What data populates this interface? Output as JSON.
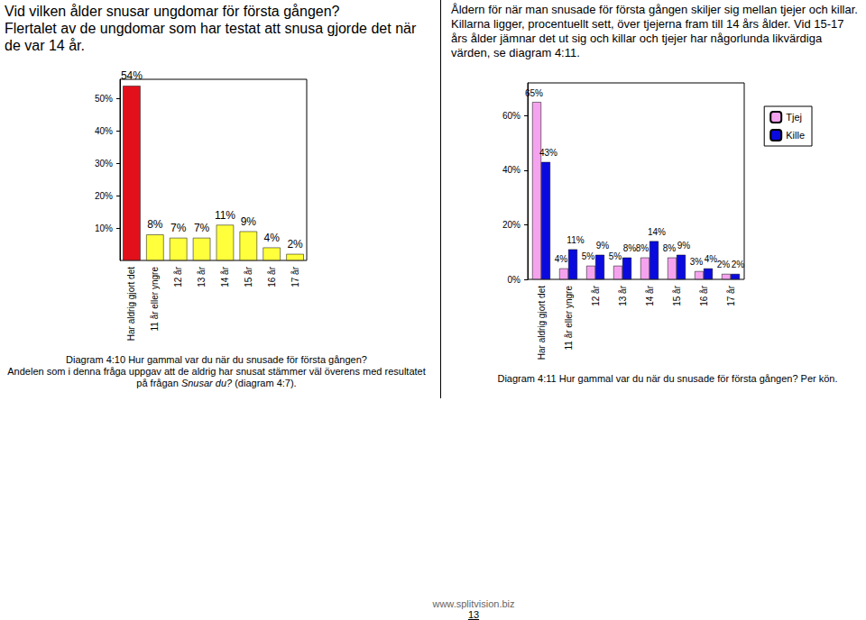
{
  "page": {
    "heading": "Vid vilken ålder snusar ungdomar för första gången?",
    "intro": "Flertalet av de ungdomar som har testat att snusa gjorde det när de var 14 år.",
    "right_text": "Åldern för när man snusade för första gången skiljer sig mellan tjejer och killar. Killarna ligger, procentuellt sett, över tjejerna fram till 14 års ålder. Vid 15-17 års ålder jämnar det ut sig och killar och tjejer har någorlunda likvärdiga värden, se diagram 4:11.",
    "captions": [
      {
        "title": "Diagram 4:10 Hur gammal var du när du snusade för första gången?",
        "note": [
          {
            "text": "Andelen som i denna fråga uppgav att de aldrig har snusat stämmer väl överens med resultatet på frågan ",
            "italic": false
          },
          {
            "text": "Snusar du?",
            "italic": true
          },
          {
            "text": " (diagram 4:7).",
            "italic": false
          }
        ]
      },
      {
        "title": "Diagram 4:11 Hur gammal var du när du snusade för första gången? Per kön."
      }
    ],
    "footer": {
      "url": "www.splitvision.biz",
      "page_number": 13
    }
  },
  "chart_data": [
    {
      "type": "bar",
      "categories": [
        "Har aldrig gjort det",
        "11 år eller yngre",
        "12 år",
        "13 år",
        "14 år",
        "15 år",
        "16 år",
        "17 år"
      ],
      "values": [
        54,
        8,
        7,
        7,
        11,
        9,
        4,
        2
      ],
      "value_labels": [
        "54%",
        "8%",
        "7%",
        "7%",
        "11%",
        "9%",
        "4%",
        "2%"
      ],
      "colors": [
        "#e2101b",
        "#ffff3c",
        "#ffff3c",
        "#ffff3c",
        "#ffff3c",
        "#ffff3c",
        "#ffff3c",
        "#ffff3c"
      ],
      "data_labels": true,
      "ylim": [
        0,
        56
      ],
      "yticks": [
        {
          "value": 10,
          "label": "10%"
        },
        {
          "value": 20,
          "label": "20%"
        },
        {
          "value": 30,
          "label": "30%"
        },
        {
          "value": 40,
          "label": "40%"
        },
        {
          "value": 50,
          "label": "50%"
        }
      ],
      "grid": false
    },
    {
      "type": "bar",
      "categories": [
        "Har aldrig gjort det",
        "11 år eller yngre",
        "12 år",
        "13 år",
        "14 år",
        "15 år",
        "16 år",
        "17 år"
      ],
      "series": [
        {
          "name": "Tjej",
          "color": "#f5a3ee",
          "values": [
            65,
            4,
            5,
            5,
            8,
            8,
            3,
            2
          ],
          "value_labels": [
            "65%",
            "4%",
            "5%",
            "5%",
            "8%",
            "8%",
            "3%",
            "2%"
          ]
        },
        {
          "name": "Kille",
          "color": "#0a0adf",
          "values": [
            43,
            11,
            9,
            8,
            14,
            9,
            4,
            2
          ],
          "value_labels": [
            "43%",
            "11%",
            "9%",
            "8%",
            "14%",
            "9%",
            "4%",
            "2%"
          ]
        }
      ],
      "data_labels": true,
      "legend": "top-right",
      "ylim": [
        0,
        72
      ],
      "yticks": [
        {
          "value": 0,
          "label": "0%"
        },
        {
          "value": 20,
          "label": "20%"
        },
        {
          "value": 40,
          "label": "40%"
        },
        {
          "value": 60,
          "label": "60%"
        }
      ],
      "grid": false
    }
  ]
}
